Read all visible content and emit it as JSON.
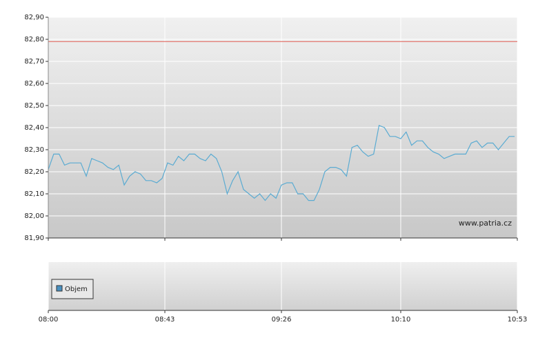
{
  "chart_data": {
    "type": "line",
    "watermark": "www.patria.cz",
    "x": [
      "08:00",
      "08:02",
      "08:04",
      "08:06",
      "08:08",
      "08:10",
      "08:12",
      "08:14",
      "08:16",
      "08:18",
      "08:20",
      "08:22",
      "08:24",
      "08:26",
      "08:28",
      "08:30",
      "08:32",
      "08:34",
      "08:36",
      "08:38",
      "08:40",
      "08:42",
      "08:44",
      "08:46",
      "08:48",
      "08:50",
      "08:52",
      "08:54",
      "08:56",
      "08:58",
      "09:00",
      "09:02",
      "09:04",
      "09:06",
      "09:08",
      "09:10",
      "09:12",
      "09:14",
      "09:16",
      "09:18",
      "09:20",
      "09:22",
      "09:24",
      "09:26",
      "09:28",
      "09:30",
      "09:32",
      "09:34",
      "09:36",
      "09:38",
      "09:40",
      "09:42",
      "09:44",
      "09:46",
      "09:48",
      "09:50",
      "09:52",
      "09:54",
      "09:56",
      "09:58",
      "10:00",
      "10:02",
      "10:04",
      "10:06",
      "10:08",
      "10:10",
      "10:12",
      "10:14",
      "10:16",
      "10:18",
      "10:20",
      "10:22",
      "10:24",
      "10:26",
      "10:28",
      "10:30",
      "10:32",
      "10:34",
      "10:36",
      "10:38",
      "10:40",
      "10:42",
      "10:44",
      "10:46",
      "10:48",
      "10:50",
      "10:52"
    ],
    "series": [
      {
        "color": "#5aabd2",
        "values": [
          82.21,
          82.28,
          82.28,
          82.23,
          82.24,
          82.24,
          82.24,
          82.18,
          82.26,
          82.25,
          82.24,
          82.22,
          82.21,
          82.23,
          82.14,
          82.18,
          82.2,
          82.19,
          82.16,
          82.16,
          82.15,
          82.17,
          82.24,
          82.23,
          82.27,
          82.25,
          82.28,
          82.28,
          82.26,
          82.25,
          82.28,
          82.26,
          82.2,
          82.1,
          82.16,
          82.2,
          82.12,
          82.1,
          82.08,
          82.1,
          82.07,
          82.1,
          82.08,
          82.14,
          82.15,
          82.15,
          82.1,
          82.1,
          82.07,
          82.07,
          82.12,
          82.2,
          82.22,
          82.22,
          82.21,
          82.18,
          82.31,
          82.32,
          82.29,
          82.27,
          82.28,
          82.41,
          82.4,
          82.36,
          82.36,
          82.35,
          82.38,
          82.32,
          82.34,
          82.34,
          82.31,
          82.29,
          82.28,
          82.26,
          82.27,
          82.28,
          82.28,
          82.28,
          82.33,
          82.34,
          82.31,
          82.33,
          82.33,
          82.3,
          82.33,
          82.36,
          82.36
        ]
      }
    ],
    "reference_line": {
      "value": 82.79,
      "color": "#e05a50"
    },
    "xlim": [
      "08:00",
      "10:53"
    ],
    "xticks": [
      "08:00",
      "08:43",
      "09:26",
      "10:10",
      "10:53"
    ],
    "ylim": [
      81.9,
      82.9
    ],
    "yticks": [
      {
        "value": 81.9,
        "label": "81,90"
      },
      {
        "value": 82.0,
        "label": "82,00"
      },
      {
        "value": 82.1,
        "label": "82,10"
      },
      {
        "value": 82.2,
        "label": "82,20"
      },
      {
        "value": 82.3,
        "label": "82,30"
      },
      {
        "value": 82.4,
        "label": "82,40"
      },
      {
        "value": 82.5,
        "label": "82,50"
      },
      {
        "value": 82.6,
        "label": "82,60"
      },
      {
        "value": 82.7,
        "label": "82,70"
      },
      {
        "value": 82.8,
        "label": "82,80"
      },
      {
        "value": 82.9,
        "label": "82,90"
      }
    ],
    "grid": true,
    "volume_panel": {
      "legend": "Objem",
      "legend_color": "#4a90c0"
    }
  }
}
